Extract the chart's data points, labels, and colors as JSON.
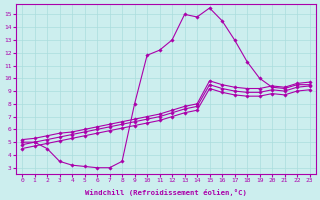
{
  "xlabel": "Windchill (Refroidissement éolien,°C)",
  "bg_color": "#cceeee",
  "line_color": "#aa00aa",
  "grid_color": "#aadddd",
  "lines": [
    {
      "x": [
        0,
        1,
        2,
        3,
        4,
        5,
        6,
        7,
        8,
        9,
        10,
        11,
        12,
        13,
        14,
        15,
        16,
        17,
        18,
        19,
        20,
        21,
        22,
        23
      ],
      "y": [
        5.0,
        5.0,
        4.5,
        3.5,
        3.2,
        3.1,
        3.0,
        3.0,
        3.5,
        8.0,
        11.8,
        12.2,
        13.0,
        15.0,
        14.8,
        15.5,
        14.5,
        13.0,
        11.3,
        10.0,
        9.3,
        9.2,
        9.5,
        9.5
      ]
    },
    {
      "x": [
        0,
        1,
        2,
        3,
        4,
        5,
        6,
        7,
        8,
        9,
        10,
        11,
        12,
        13,
        14,
        15,
        16,
        17,
        18,
        19,
        20,
        21,
        22,
        23
      ],
      "y": [
        5.2,
        5.3,
        5.5,
        5.7,
        5.8,
        6.0,
        6.2,
        6.4,
        6.6,
        6.8,
        7.0,
        7.2,
        7.5,
        7.8,
        8.0,
        9.8,
        9.5,
        9.3,
        9.2,
        9.2,
        9.4,
        9.3,
        9.6,
        9.7
      ]
    },
    {
      "x": [
        0,
        1,
        2,
        3,
        4,
        5,
        6,
        7,
        8,
        9,
        10,
        11,
        12,
        13,
        14,
        15,
        16,
        17,
        18,
        19,
        20,
        21,
        22,
        23
      ],
      "y": [
        4.8,
        5.0,
        5.2,
        5.4,
        5.6,
        5.8,
        6.0,
        6.2,
        6.4,
        6.6,
        6.8,
        7.0,
        7.3,
        7.6,
        7.8,
        9.5,
        9.2,
        9.0,
        8.9,
        8.9,
        9.1,
        9.0,
        9.3,
        9.4
      ]
    },
    {
      "x": [
        0,
        1,
        2,
        3,
        4,
        5,
        6,
        7,
        8,
        9,
        10,
        11,
        12,
        13,
        14,
        15,
        16,
        17,
        18,
        19,
        20,
        21,
        22,
        23
      ],
      "y": [
        4.5,
        4.7,
        4.9,
        5.1,
        5.3,
        5.5,
        5.7,
        5.9,
        6.1,
        6.3,
        6.5,
        6.7,
        7.0,
        7.3,
        7.5,
        9.2,
        8.9,
        8.7,
        8.6,
        8.6,
        8.8,
        8.7,
        9.0,
        9.1
      ]
    }
  ],
  "xlim": [
    -0.5,
    23.5
  ],
  "ylim": [
    2.5,
    15.8
  ],
  "yticks": [
    3,
    4,
    5,
    6,
    7,
    8,
    9,
    10,
    11,
    12,
    13,
    14,
    15
  ],
  "xticks": [
    0,
    1,
    2,
    3,
    4,
    5,
    6,
    7,
    8,
    9,
    10,
    11,
    12,
    13,
    14,
    15,
    16,
    17,
    18,
    19,
    20,
    21,
    22,
    23
  ],
  "marker": "D",
  "markersize": 1.8,
  "linewidth": 0.8
}
